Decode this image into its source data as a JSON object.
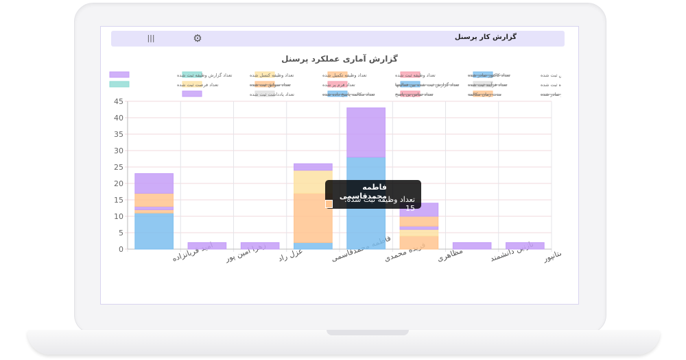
{
  "header": {
    "title": "گزارش کار پرسنل",
    "settings_icon": "gear-icon",
    "menu_icon": "column-menu-icon"
  },
  "chart_data": {
    "type": "bar",
    "stacked": true,
    "title": "گزارش آماری عملکرد پرسنل",
    "xlabel": "",
    "ylabel": "",
    "ylim": [
      0,
      45
    ],
    "yticks": [
      0,
      5,
      10,
      15,
      20,
      25,
      30,
      35,
      40,
      45
    ],
    "grid": true,
    "legend_position": "top",
    "categories": [
      "امید قربانزاده",
      "زهرا امین پور",
      "غزل راد",
      "فاطمه محمدقاسمی",
      "فریده محمدی",
      "مظاهری",
      "نازنین دانشمند",
      "نرگس داستانپور"
    ],
    "series": [
      {
        "name": "تعداد شخص ثبت شده",
        "color": "#7cbeee",
        "hidden": false,
        "values": [
          11,
          0,
          0,
          2,
          28,
          0,
          0,
          0
        ]
      },
      {
        "name": "تعداد کاکتور صادر شده",
        "color": "#f7a1b0",
        "hidden": true,
        "values": [
          0,
          0,
          0,
          0,
          0,
          0,
          0,
          0
        ]
      },
      {
        "name": "تعداد وظیفه ثبت شده",
        "color": "#ffc48f",
        "hidden": false,
        "values": [
          1,
          0,
          0,
          15,
          0,
          4,
          0,
          0
        ]
      },
      {
        "name": "تعداد وظیفه تکمیل شده",
        "color": "#fde2a3",
        "hidden": false,
        "values": [
          0,
          0,
          0,
          7,
          0,
          2,
          0,
          0
        ]
      },
      {
        "name": "تعداد وظیفه کنسل شده",
        "color": "#8fdbd3",
        "hidden": false,
        "values": [
          0,
          0,
          0,
          0,
          0,
          0,
          0,
          0
        ]
      },
      {
        "name": "تعداد گزارش وظیفه ثبت شده",
        "color": "#c49ef7",
        "hidden": false,
        "values": [
          1,
          0,
          0,
          0,
          0,
          1,
          0,
          0
        ]
      },
      {
        "name": "تعداد پرونده ثبت شده",
        "color": "#dedede",
        "hidden": false,
        "values": [
          0,
          0,
          0,
          0,
          0,
          0,
          0,
          0
        ]
      },
      {
        "name": "تعداد فرآیند ثبت شده",
        "color": "#7cbeee",
        "hidden": true,
        "values": [
          0,
          0,
          0,
          0,
          0,
          0,
          0,
          0
        ]
      },
      {
        "name": "تعداد گزارش ثبت شده بین فعالیتها",
        "color": "#f7a1b0",
        "hidden": true,
        "values": [
          0,
          0,
          0,
          0,
          0,
          0,
          0,
          0
        ]
      },
      {
        "name": "تعداد فرم پر شده",
        "color": "#ffc48f",
        "hidden": false,
        "values": [
          4,
          0,
          0,
          0,
          0,
          3,
          0,
          0
        ]
      },
      {
        "name": "تعداد سوابق ثبت شده",
        "color": "#fde2a3",
        "hidden": true,
        "values": [
          0,
          0,
          0,
          0,
          0,
          0,
          0,
          0
        ]
      },
      {
        "name": "تعداد فرصت ثبت شده",
        "color": "#8fdbd3",
        "hidden": false,
        "values": [
          0,
          0,
          0,
          0,
          0,
          0,
          0,
          0
        ]
      },
      {
        "name": "تعداد پیش فاکتور صادر شده",
        "color": "#ffc48f",
        "hidden": true,
        "values": [
          0,
          0,
          0,
          0,
          0,
          0,
          0,
          0
        ]
      },
      {
        "name": "مدت زمان مکالمه",
        "color": "#f7a1b0",
        "hidden": true,
        "values": [
          0,
          0,
          0,
          0,
          0,
          0,
          0,
          0
        ]
      },
      {
        "name": "تعداد تماس بی پاسخ",
        "color": "#7cbeee",
        "hidden": true,
        "values": [
          0,
          0,
          0,
          0,
          0,
          0,
          0,
          0
        ]
      },
      {
        "name": "تعداد مکالمه پاسخ داده شده",
        "color": "#dedede",
        "hidden": true,
        "values": [
          0,
          0,
          0,
          0,
          0,
          0,
          0,
          0
        ]
      },
      {
        "name": "تعداد یادداشت ثبت شده",
        "color": "#c49ef7",
        "hidden": false,
        "values": [
          6,
          2,
          2,
          2,
          15,
          4,
          2,
          2
        ]
      }
    ],
    "tooltip": {
      "title": "فاطمه محمدقاسمی",
      "label": "تعداد وظیفه ثبت شده: 15",
      "swatch_color": "#ffc48f"
    }
  }
}
